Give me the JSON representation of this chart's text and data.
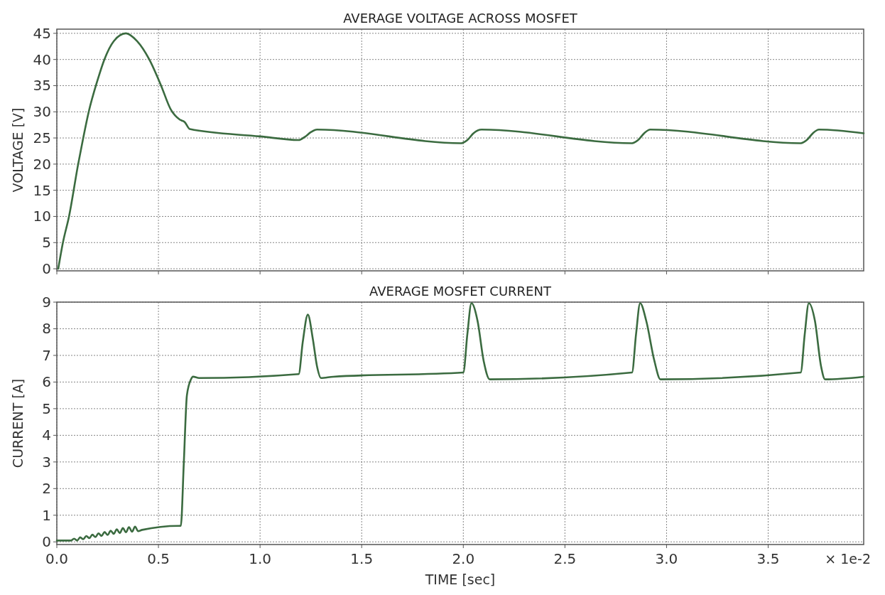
{
  "chart_data": [
    {
      "type": "line",
      "title": "AVERAGE VOLTAGE ACROSS MOSFET",
      "ylabel": "VOLTAGE [V]",
      "color": "#3b6b40",
      "grid": true,
      "tick_labels": "y",
      "line_style": "solid",
      "xlim": [
        0,
        3.97
      ],
      "xticks": [
        0,
        0.5,
        1,
        1.5,
        2,
        2.5,
        3,
        3.5
      ],
      "ylim": [
        -0.4,
        45.8
      ],
      "yticks": [
        0,
        5,
        10,
        15,
        20,
        25,
        30,
        35,
        40,
        45
      ],
      "x": [
        0.007,
        0.03,
        0.06,
        0.105,
        0.13,
        0.157,
        0.2,
        0.234,
        0.28,
        0.34,
        0.395,
        0.455,
        0.513,
        0.56,
        0.605,
        0.63,
        0.654,
        1.0,
        1.19,
        1.22,
        1.25,
        1.28,
        1.99,
        2.02,
        2.05,
        2.09,
        2.83,
        2.86,
        2.89,
        2.92,
        3.66,
        3.69,
        3.72,
        3.75,
        3.97
      ],
      "values": [
        0,
        5,
        10,
        20,
        25,
        30,
        36,
        40,
        43.5,
        45,
        43.5,
        40,
        35,
        30.5,
        28.5,
        28,
        26.7,
        25.3,
        24.6,
        25.2,
        26.1,
        26.6,
        24.0,
        24.6,
        25.9,
        26.6,
        24.0,
        24.6,
        25.9,
        26.6,
        24.0,
        24.6,
        25.9,
        26.6,
        25.9
      ]
    },
    {
      "type": "line",
      "title": "AVERAGE MOSFET CURRENT",
      "ylabel": "CURRENT [A]",
      "xlabel": "TIME [sec]",
      "color": "#3b6b40",
      "grid": true,
      "line_style": "solid",
      "annotations": [
        "× 1e-2"
      ],
      "xlim": [
        0,
        3.97
      ],
      "xticks": [
        {
          "value": 0,
          "label": "0.0"
        },
        {
          "value": 0.5,
          "label": "0.5"
        },
        {
          "value": 1,
          "label": "1.0"
        },
        {
          "value": 1.5,
          "label": "1.5"
        },
        {
          "value": 2,
          "label": "2.0"
        },
        {
          "value": 2.5,
          "label": "2.5"
        },
        {
          "value": 3,
          "label": "3.0"
        },
        {
          "value": 3.5,
          "label": "3.5"
        }
      ],
      "ylim": [
        -0.1,
        9
      ],
      "yticks": [
        0,
        1,
        2,
        3,
        4,
        5,
        6,
        7,
        8,
        9
      ],
      "x": [
        0,
        0.07,
        0.085,
        0.1,
        0.115,
        0.13,
        0.145,
        0.16,
        0.175,
        0.19,
        0.205,
        0.22,
        0.235,
        0.25,
        0.265,
        0.28,
        0.295,
        0.31,
        0.325,
        0.34,
        0.355,
        0.37,
        0.385,
        0.4,
        0.42,
        0.6,
        0.61,
        0.625,
        0.64,
        0.66,
        0.67,
        0.7,
        1.19,
        1.21,
        1.235,
        1.26,
        1.28,
        1.3,
        1.36,
        2.0,
        2.02,
        2.04,
        2.07,
        2.1,
        2.13,
        2.83,
        2.85,
        2.87,
        2.9,
        2.94,
        2.97,
        3.66,
        3.68,
        3.7,
        3.73,
        3.76,
        3.78,
        3.97
      ],
      "values": [
        0.05,
        0.05,
        0.12,
        0.05,
        0.17,
        0.1,
        0.22,
        0.14,
        0.27,
        0.18,
        0.32,
        0.22,
        0.37,
        0.26,
        0.42,
        0.3,
        0.47,
        0.33,
        0.52,
        0.36,
        0.55,
        0.38,
        0.57,
        0.4,
        0.45,
        0.6,
        0.6,
        3,
        5.5,
        6.1,
        6.2,
        6.15,
        6.3,
        7.5,
        8.53,
        7.6,
        6.6,
        6.15,
        6.2,
        6.36,
        7.8,
        8.96,
        8.3,
        6.8,
        6.1,
        6.36,
        7.8,
        8.96,
        8.3,
        6.8,
        6.1,
        6.36,
        7.8,
        8.96,
        8.3,
        6.6,
        6.1,
        6.2
      ]
    }
  ]
}
